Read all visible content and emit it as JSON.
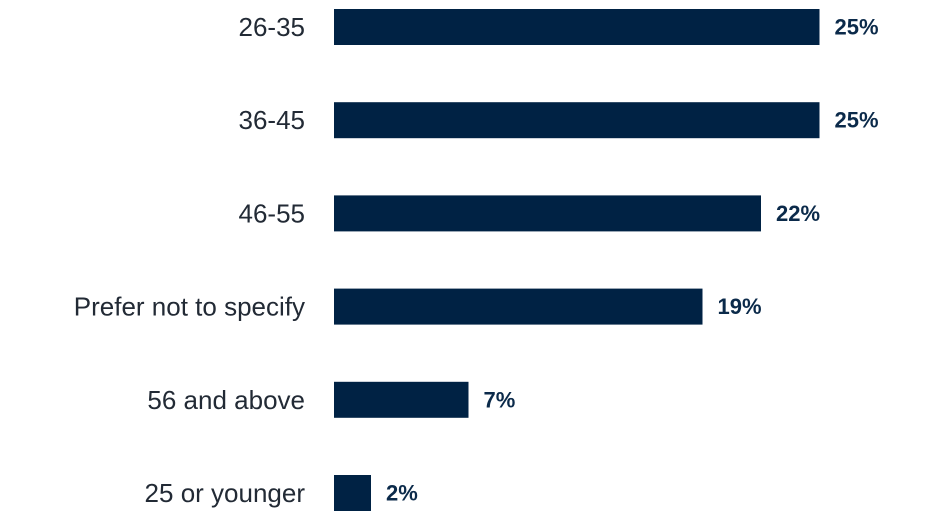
{
  "colors": {
    "bar": "#002244",
    "bar_outline": "#ffffff",
    "value_label": "#0b2a4a",
    "category_label": "#222a35",
    "background": "#ffffff"
  },
  "chart_data": {
    "type": "bar",
    "orientation": "horizontal",
    "categories": [
      "26-35",
      "36-45",
      "46-55",
      "Prefer not to specify",
      "56 and above",
      "25 or younger"
    ],
    "values": [
      25,
      25,
      22,
      19,
      7,
      2
    ],
    "value_labels": [
      "25%",
      "25%",
      "22%",
      "19%",
      "7%",
      "2%"
    ],
    "unit": "%",
    "grid": false,
    "legend": "none"
  }
}
